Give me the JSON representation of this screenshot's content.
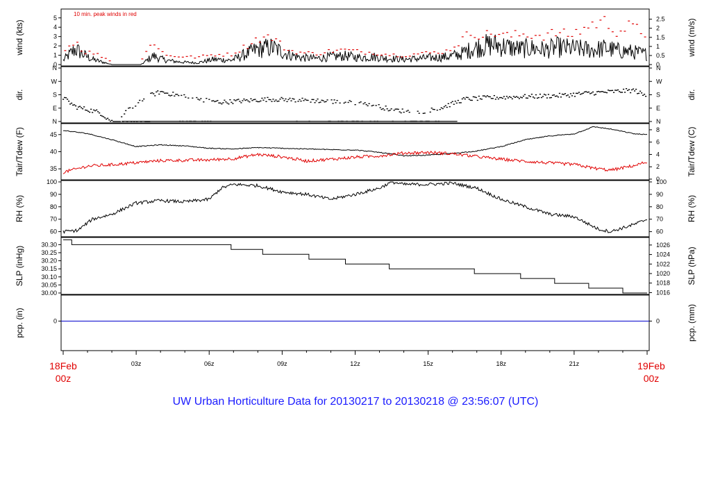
{
  "title": "UW Urban Horticulture Data for 20130217  to  20130218 @ 23:56:07  (UTC)",
  "colors": {
    "title": "#1a1aff",
    "peak": "#e00000",
    "air": "#000000",
    "dew": "#e00000",
    "pcp": "#0000cc",
    "date": "#e00000"
  },
  "x_axis": {
    "start_label": [
      "18Feb",
      "00z"
    ],
    "end_label": [
      "19Feb",
      "00z"
    ],
    "hour_ticks": [
      "03z",
      "06z",
      "09z",
      "12z",
      "15z",
      "18z",
      "21z"
    ]
  },
  "chart_data": [
    {
      "type": "line",
      "name": "wind",
      "left_label": "wind (kts)",
      "right_label": "wind (m/s)",
      "annotation": "10 min. peak winds in red",
      "left_ticks": [
        "0",
        "1",
        "2",
        "3",
        "4",
        "5"
      ],
      "right_ticks": [
        "0",
        "0.5",
        "1",
        "1.5",
        "2",
        "2.5"
      ],
      "ylim": [
        0,
        5.8
      ],
      "x_hours": [
        0,
        0.5,
        0.8,
        1.2,
        1.6,
        2.0,
        2.6,
        3.2,
        3.7,
        4.2,
        4.8,
        5.5,
        6.2,
        6.9,
        7.5,
        8.0,
        8.6,
        9.2,
        9.8,
        10.4,
        11.0,
        11.6,
        12.2,
        12.8,
        13.4,
        14.0,
        14.6,
        15.2,
        15.8,
        16.3,
        16.8,
        17.3,
        17.8,
        18.3,
        18.8,
        19.3,
        19.8,
        20.3,
        20.8,
        21.3,
        21.8,
        22.3,
        22.8,
        23.3,
        24.0
      ],
      "wind_kts": [
        0.5,
        1.8,
        1.2,
        0.6,
        0.3,
        0,
        0,
        0,
        1.0,
        0.5,
        0.3,
        0.2,
        0.6,
        0.5,
        1.2,
        1.8,
        2.0,
        1.2,
        0.8,
        0.7,
        0.9,
        1.0,
        0.8,
        0.9,
        0.7,
        0.6,
        0.7,
        0.8,
        0.9,
        1.2,
        1.8,
        2.2,
        2.3,
        2.0,
        1.8,
        1.9,
        1.7,
        2.0,
        1.9,
        1.8,
        1.7,
        1.9,
        1.6,
        1.5,
        1.2
      ],
      "peak_kts": [
        1.3,
        2.8,
        1.4,
        1.3,
        0.9,
        0.3,
        0.3,
        0.4,
        2.6,
        1.0,
        0.9,
        0.8,
        1.1,
        1.1,
        2.0,
        2.9,
        3.0,
        1.6,
        1.3,
        1.2,
        1.5,
        1.6,
        1.4,
        1.3,
        1.1,
        1.0,
        1.2,
        1.3,
        1.5,
        2.5,
        3.6,
        3.2,
        3.5,
        3.1,
        3.3,
        3.3,
        3.2,
        3.5,
        3.2,
        3.8,
        4.5,
        4.7,
        3.6,
        4.2,
        3.3
      ]
    },
    {
      "type": "scatter",
      "name": "dir.",
      "left_label": "dir.",
      "right_label": "dir.",
      "left_ticks": [
        "N",
        "E",
        "S",
        "W",
        "N"
      ],
      "right_ticks": [
        "N",
        "E",
        "S",
        "W",
        "N"
      ],
      "ylim": [
        0,
        360
      ],
      "x_hours": [
        0,
        0.5,
        1.0,
        1.5,
        2.0,
        3.5,
        4.0,
        5.5,
        6.5,
        7.5,
        8.5,
        9.5,
        10.5,
        11.5,
        12.5,
        13.5,
        14.5,
        15.5,
        16.5,
        17.5,
        18.5,
        19.5,
        20.5,
        21.5,
        22.5,
        23.5,
        24.0
      ],
      "dir_deg": [
        160,
        100,
        80,
        60,
        0,
        170,
        200,
        150,
        130,
        140,
        150,
        145,
        140,
        130,
        120,
        80,
        60,
        90,
        150,
        160,
        165,
        170,
        175,
        190,
        200,
        210,
        165
      ]
    },
    {
      "type": "line",
      "name": "temperature",
      "left_label": "Tair/Tdew (F)",
      "right_label": "Tair/Tdew (C)",
      "left_ticks": [
        "35",
        "40",
        "45"
      ],
      "right_ticks": [
        "0",
        "2",
        "4",
        "6",
        "8"
      ],
      "ylim": [
        32.2,
        47.8
      ],
      "x_hours": [
        0,
        1,
        2,
        3,
        4,
        5,
        6,
        7,
        8,
        9,
        10,
        11,
        12,
        13,
        14,
        15,
        16,
        17,
        18,
        19,
        20,
        21,
        21.8,
        22.5,
        23.5,
        24.0
      ],
      "tair_f": [
        46.2,
        45.3,
        43.5,
        41.5,
        42.0,
        41.7,
        41.0,
        40.8,
        41.2,
        41.0,
        40.8,
        40.6,
        40.5,
        39.8,
        38.8,
        39.0,
        39.5,
        40.2,
        41.5,
        43.5,
        44.6,
        45.2,
        47.3,
        46.6,
        45.2,
        45.0
      ],
      "tdew_f": [
        34.0,
        35.8,
        36.2,
        36.8,
        37.4,
        37.5,
        37.6,
        38.0,
        39.2,
        38.5,
        37.3,
        37.8,
        38.4,
        38.8,
        39.6,
        39.8,
        39.4,
        38.6,
        37.8,
        37.2,
        36.7,
        36.3,
        35.2,
        34.6,
        36.0,
        37.0
      ]
    },
    {
      "type": "line",
      "name": "rh",
      "left_label": "RH (%)",
      "right_label": "RH (%)",
      "left_ticks": [
        "60",
        "70",
        "80",
        "90",
        "100"
      ],
      "right_ticks": [
        "60",
        "70",
        "80",
        "90",
        "100"
      ],
      "ylim": [
        57,
        100
      ],
      "x_hours": [
        0,
        0.6,
        1.2,
        2.0,
        3.0,
        4.0,
        5.0,
        6.0,
        6.5,
        7.0,
        8.0,
        9.0,
        10.0,
        11.0,
        12.0,
        13.0,
        13.5,
        14.0,
        15.0,
        16.0,
        17.0,
        18.0,
        19.0,
        20.0,
        21.0,
        22.0,
        22.5,
        23.5,
        24.0
      ],
      "rh_pct": [
        60,
        61,
        70,
        74,
        83,
        85,
        84,
        86,
        95,
        98,
        97,
        92,
        90,
        86,
        90,
        95,
        100,
        98,
        98,
        99,
        95,
        86,
        80,
        74,
        72,
        62,
        60,
        66,
        70
      ]
    },
    {
      "type": "line",
      "name": "slp",
      "left_label": "SLP (inHg)",
      "right_label": "SLP (hPa)",
      "left_ticks": [
        "30.00",
        "30.05",
        "30.10",
        "30.15",
        "30.20",
        "30.25",
        "30.30"
      ],
      "right_ticks": [
        "1016",
        "1018",
        "1020",
        "1022",
        "1024",
        "1026"
      ],
      "ylim": [
        30.0,
        30.336
      ],
      "x_hours": [
        0,
        0.35,
        6.9,
        8.2,
        10.1,
        11.6,
        13.4,
        16.9,
        18.8,
        20.2,
        21.6,
        23.0,
        24.0
      ],
      "slp_inhg": [
        30.33,
        30.3,
        30.27,
        30.24,
        30.21,
        30.18,
        30.15,
        30.12,
        30.09,
        30.06,
        30.03,
        30.0,
        30.0
      ]
    },
    {
      "type": "line",
      "name": "pcp",
      "left_label": "pcp. (in)",
      "right_label": "pcp. (mm)",
      "left_ticks": [
        "0"
      ],
      "right_ticks": [
        "0"
      ],
      "ylim": [
        -0.4,
        0.35
      ],
      "x_hours": [
        0,
        24
      ],
      "pcp_in": [
        0,
        0
      ]
    }
  ]
}
